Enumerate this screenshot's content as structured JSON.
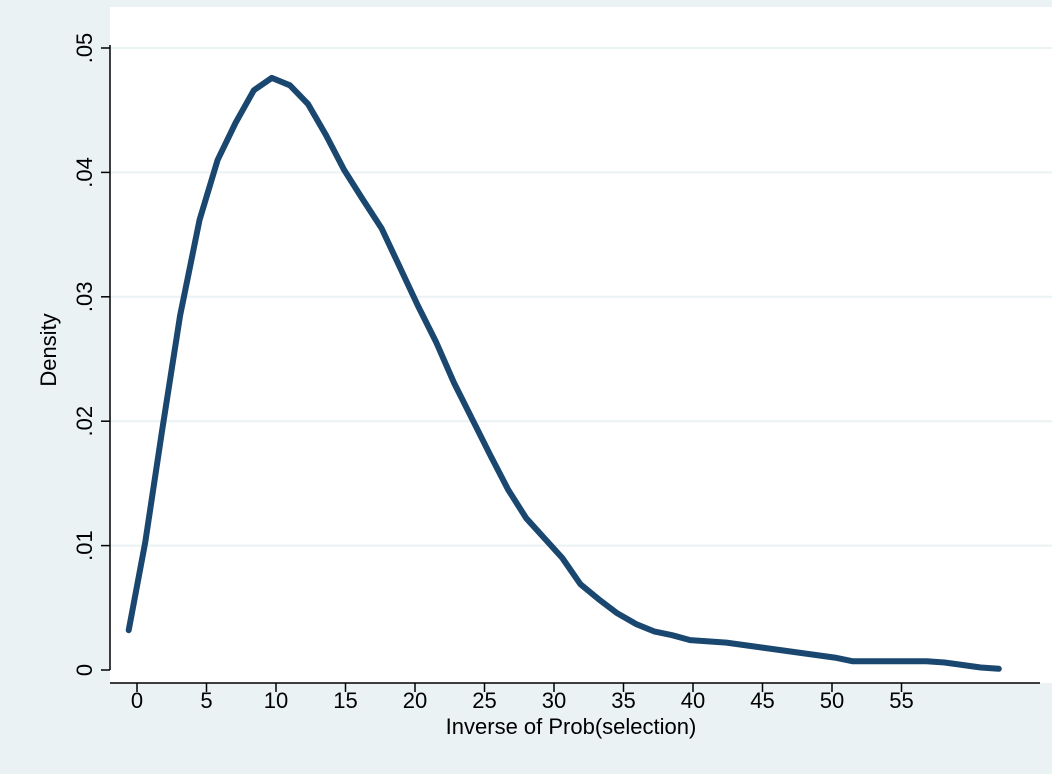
{
  "chart_data": {
    "type": "line",
    "title": "",
    "xlabel": "Inverse of Prob(selection)",
    "ylabel": "Density",
    "xlim": [
      -1,
      63
    ],
    "ylim": [
      0,
      0.05
    ],
    "x_ticks": [
      0,
      5,
      10,
      15,
      20,
      25,
      30,
      35,
      40,
      45,
      50,
      55
    ],
    "x_tick_labels": [
      "0",
      "5",
      "10",
      "15",
      "20",
      "25",
      "30",
      "35",
      "40",
      "45",
      "50",
      "55"
    ],
    "y_ticks": [
      0,
      0.01,
      0.02,
      0.03,
      0.04,
      0.05
    ],
    "y_tick_labels": [
      "0",
      ".01",
      ".02",
      ".03",
      ".04",
      ".05"
    ],
    "grid": "horizontal",
    "colors": {
      "line": "#1a476f",
      "plot_bg": "#ffffff",
      "outer_bg": "#eaf2f3",
      "grid": "#eaf2f3"
    },
    "series": [
      {
        "x": [
          -0.6,
          0.6,
          1.8,
          3.1,
          4.5,
          5.8,
          7.1,
          8.4,
          9.7,
          11.0,
          12.3,
          13.6,
          14.9,
          16.2,
          17.6,
          18.9,
          20.2,
          21.5,
          22.8,
          24.1,
          25.4,
          26.7,
          28.0,
          29.3,
          30.6,
          31.9,
          33.2,
          34.5,
          35.9,
          37.2,
          38.5,
          39.8,
          41.1,
          42.4,
          43.7,
          45.0,
          46.3,
          47.6,
          48.9,
          50.2,
          51.5,
          52.8,
          54.1,
          55.4,
          56.8,
          58.1,
          59.4,
          60.7,
          62.0
        ],
        "y": [
          0.0032,
          0.0103,
          0.0192,
          0.0285,
          0.0362,
          0.041,
          0.044,
          0.0466,
          0.0476,
          0.047,
          0.0455,
          0.043,
          0.0402,
          0.0379,
          0.0355,
          0.0324,
          0.0293,
          0.0264,
          0.0231,
          0.0202,
          0.0173,
          0.0145,
          0.0122,
          0.0106,
          0.009,
          0.0069,
          0.0057,
          0.0046,
          0.0037,
          0.0031,
          0.0028,
          0.0024,
          0.0023,
          0.0022,
          0.002,
          0.0018,
          0.0016,
          0.0014,
          0.0012,
          0.001,
          0.0007,
          0.0007,
          0.0007,
          0.0007,
          0.0007,
          0.0006,
          0.0004,
          0.0002,
          0.0001
        ]
      }
    ]
  }
}
